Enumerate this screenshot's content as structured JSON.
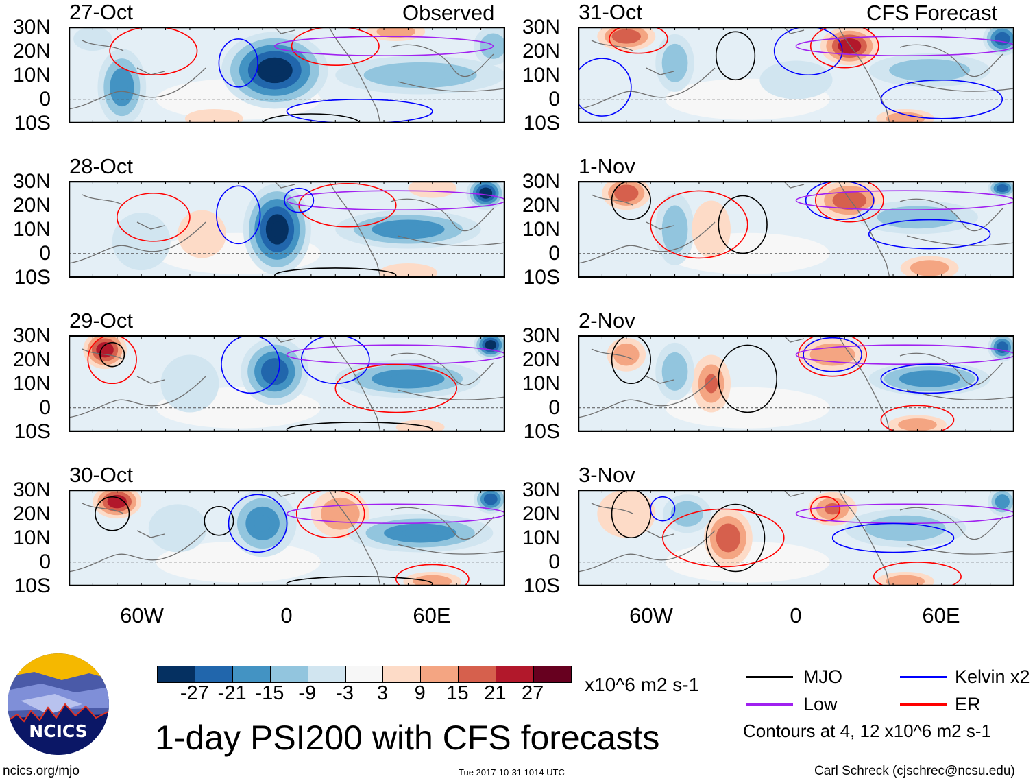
{
  "header": {
    "left_label": "Observed",
    "right_label": "CFS Forecast"
  },
  "lat_labels": [
    "30N",
    "20N",
    "10N",
    "0",
    "10S"
  ],
  "lon_labels": [
    "60W",
    "0",
    "60E"
  ],
  "colors": {
    "levels": [
      "#053061",
      "#2166ac",
      "#4393c3",
      "#92c5de",
      "#d1e5f0",
      "#f7f7f7",
      "#fddbc7",
      "#f4a582",
      "#d6604d",
      "#b2182b",
      "#67001f"
    ],
    "MJO": "#000000",
    "Low": "#a020f0",
    "Kelvin": "#0000ff",
    "ER": "#ff0000",
    "coast": "#707070"
  },
  "chart_data": {
    "type": "heatmap",
    "title": "1-day PSI200 with CFS forecasts",
    "units": "x10^6 m2 s-1",
    "lon_range": [
      -90,
      90
    ],
    "lat_range": [
      -10,
      30
    ],
    "colorbar_ticks": [
      "-27",
      "-21",
      "-15",
      "-9",
      "-3",
      "3",
      "9",
      "15",
      "21",
      "27"
    ],
    "colorbar_bounds": [
      -27,
      -21,
      -15,
      -9,
      -3,
      3,
      9,
      15,
      21,
      27
    ],
    "panels": [
      {
        "date": "27-Oct",
        "kind": "observed",
        "anomalies": [
          [
            -5,
            12,
            22,
            16,
            -31
          ],
          [
            -68,
            5,
            10,
            16,
            -21
          ],
          [
            55,
            10,
            35,
            8,
            -15
          ],
          [
            85,
            22,
            8,
            8,
            -12
          ],
          [
            45,
            28,
            12,
            4,
            10
          ],
          [
            -30,
            -8,
            12,
            4,
            5
          ],
          [
            -80,
            25,
            8,
            5,
            -8
          ]
        ],
        "contours": [
          [
            -20,
            15,
            8,
            10,
            "Kelvin"
          ],
          [
            -55,
            20,
            18,
            10,
            "ER"
          ],
          [
            20,
            22,
            18,
            8,
            "ER"
          ],
          [
            40,
            22,
            45,
            4,
            "Low"
          ],
          [
            10,
            -10,
            20,
            4,
            "MJO"
          ],
          [
            30,
            -5,
            30,
            5,
            "Kelvin"
          ]
        ]
      },
      {
        "date": "28-Oct",
        "kind": "observed",
        "anomalies": [
          [
            -4,
            10,
            14,
            19,
            -31
          ],
          [
            82,
            25,
            8,
            7,
            -30
          ],
          [
            50,
            10,
            30,
            8,
            -16
          ],
          [
            -35,
            8,
            10,
            10,
            5
          ],
          [
            60,
            27,
            10,
            4,
            8
          ],
          [
            50,
            -8,
            12,
            4,
            6
          ],
          [
            -60,
            5,
            12,
            12,
            -8
          ]
        ],
        "contours": [
          [
            -20,
            16,
            9,
            12,
            "Kelvin"
          ],
          [
            -55,
            15,
            15,
            10,
            "ER"
          ],
          [
            25,
            20,
            20,
            9,
            "ER"
          ],
          [
            45,
            22,
            45,
            4,
            "Low"
          ],
          [
            20,
            -9,
            25,
            3,
            "MJO"
          ],
          [
            5,
            22,
            6,
            5,
            "Kelvin"
          ]
        ]
      },
      {
        "date": "29-Oct",
        "kind": "observed",
        "anomalies": [
          [
            -75,
            24,
            9,
            8,
            25
          ],
          [
            -5,
            15,
            14,
            14,
            -26
          ],
          [
            50,
            12,
            30,
            8,
            -18
          ],
          [
            84,
            26,
            7,
            6,
            -30
          ],
          [
            -40,
            10,
            12,
            12,
            -9
          ],
          [
            55,
            -8,
            10,
            3,
            7
          ]
        ],
        "contours": [
          [
            -72,
            22,
            5,
            5,
            "MJO"
          ],
          [
            -15,
            18,
            12,
            12,
            "Kelvin"
          ],
          [
            -72,
            20,
            10,
            10,
            "ER"
          ],
          [
            20,
            20,
            14,
            10,
            "Kelvin"
          ],
          [
            45,
            22,
            45,
            4,
            "Low"
          ],
          [
            30,
            -9,
            30,
            3,
            "MJO"
          ],
          [
            45,
            8,
            25,
            10,
            "ER"
          ]
        ]
      },
      {
        "date": "30-Oct",
        "kind": "observed",
        "anomalies": [
          [
            -70,
            25,
            10,
            7,
            25
          ],
          [
            -10,
            16,
            14,
            14,
            -20
          ],
          [
            22,
            20,
            12,
            10,
            12
          ],
          [
            55,
            12,
            30,
            8,
            -18
          ],
          [
            84,
            26,
            7,
            6,
            -27
          ],
          [
            60,
            -8,
            12,
            4,
            10
          ],
          [
            -45,
            14,
            12,
            10,
            -9
          ]
        ],
        "contours": [
          [
            -72,
            20,
            7,
            7,
            "MJO"
          ],
          [
            -28,
            17,
            6,
            6,
            "MJO"
          ],
          [
            -12,
            16,
            12,
            12,
            "Kelvin"
          ],
          [
            18,
            20,
            14,
            10,
            "ER"
          ],
          [
            45,
            20,
            45,
            4,
            "Low"
          ],
          [
            30,
            -9,
            30,
            3,
            "MJO"
          ],
          [
            60,
            -7,
            15,
            6,
            "ER"
          ]
        ]
      },
      {
        "date": "31-Oct",
        "kind": "forecast",
        "anomalies": [
          [
            -70,
            26,
            12,
            6,
            18
          ],
          [
            22,
            22,
            12,
            8,
            22
          ],
          [
            -50,
            15,
            8,
            12,
            -15
          ],
          [
            85,
            25,
            8,
            7,
            -25
          ],
          [
            45,
            -8,
            12,
            4,
            12
          ],
          [
            55,
            12,
            25,
            7,
            -10
          ],
          [
            0,
            8,
            15,
            8,
            -5
          ]
        ],
        "contours": [
          [
            -65,
            25,
            12,
            6,
            "ER"
          ],
          [
            -25,
            18,
            8,
            10,
            "MJO"
          ],
          [
            5,
            20,
            14,
            10,
            "Kelvin"
          ],
          [
            20,
            22,
            14,
            9,
            "ER"
          ],
          [
            45,
            22,
            45,
            4,
            "Low"
          ],
          [
            60,
            0,
            25,
            8,
            "Kelvin"
          ],
          [
            -80,
            5,
            12,
            12,
            "Kelvin"
          ]
        ]
      },
      {
        "date": "1-Nov",
        "kind": "forecast",
        "anomalies": [
          [
            -70,
            25,
            10,
            7,
            20
          ],
          [
            22,
            22,
            14,
            8,
            18
          ],
          [
            -50,
            10,
            8,
            15,
            -12
          ],
          [
            -35,
            10,
            8,
            12,
            8
          ],
          [
            50,
            15,
            25,
            7,
            -15
          ],
          [
            55,
            -6,
            12,
            5,
            12
          ],
          [
            85,
            27,
            6,
            4,
            -25
          ]
        ],
        "contours": [
          [
            -68,
            22,
            8,
            8,
            "MJO"
          ],
          [
            -22,
            12,
            10,
            12,
            "MJO"
          ],
          [
            18,
            22,
            14,
            8,
            "Kelvin"
          ],
          [
            22,
            22,
            14,
            9,
            "ER"
          ],
          [
            45,
            22,
            45,
            4,
            "Low"
          ],
          [
            55,
            8,
            25,
            6,
            "Kelvin"
          ],
          [
            -40,
            12,
            20,
            14,
            "ER"
          ]
        ]
      },
      {
        "date": "2-Nov",
        "kind": "forecast",
        "anomalies": [
          [
            -70,
            22,
            8,
            7,
            12
          ],
          [
            -35,
            10,
            8,
            12,
            15
          ],
          [
            15,
            22,
            14,
            7,
            12
          ],
          [
            -50,
            15,
            8,
            12,
            -12
          ],
          [
            55,
            12,
            25,
            7,
            -18
          ],
          [
            85,
            25,
            6,
            6,
            -25
          ],
          [
            50,
            -7,
            12,
            4,
            12
          ]
        ],
        "contours": [
          [
            -68,
            20,
            8,
            10,
            "MJO"
          ],
          [
            -20,
            12,
            12,
            14,
            "MJO"
          ],
          [
            15,
            22,
            12,
            7,
            "Kelvin"
          ],
          [
            15,
            22,
            14,
            9,
            "ER"
          ],
          [
            45,
            22,
            45,
            4,
            "Low"
          ],
          [
            55,
            12,
            20,
            6,
            "Kelvin"
          ],
          [
            50,
            -5,
            15,
            6,
            "ER"
          ]
        ]
      },
      {
        "date": "3-Nov",
        "kind": "forecast",
        "anomalies": [
          [
            -28,
            10,
            10,
            12,
            18
          ],
          [
            15,
            22,
            10,
            7,
            15
          ],
          [
            -45,
            20,
            10,
            8,
            -10
          ],
          [
            45,
            14,
            25,
            8,
            -12
          ],
          [
            85,
            25,
            6,
            6,
            -20
          ],
          [
            45,
            -8,
            12,
            4,
            10
          ],
          [
            -70,
            20,
            12,
            10,
            6
          ]
        ],
        "contours": [
          [
            -68,
            20,
            8,
            10,
            "MJO"
          ],
          [
            -25,
            10,
            12,
            14,
            "MJO"
          ],
          [
            12,
            22,
            6,
            5,
            "ER"
          ],
          [
            -30,
            10,
            25,
            12,
            "ER"
          ],
          [
            45,
            20,
            45,
            4,
            "Low"
          ],
          [
            40,
            10,
            25,
            6,
            "Kelvin"
          ],
          [
            -55,
            22,
            5,
            5,
            "Kelvin"
          ],
          [
            50,
            -6,
            18,
            6,
            "ER"
          ]
        ]
      }
    ]
  },
  "colorbar": {
    "units": "x10^6 m2 s-1"
  },
  "legend": {
    "items": [
      {
        "key": "MJO",
        "label": "MJO"
      },
      {
        "key": "Kelvin",
        "label": "Kelvin x2"
      },
      {
        "key": "Low",
        "label": "Low"
      },
      {
        "key": "ER",
        "label": "ER"
      }
    ],
    "note": "Contours at 4, 12 x10^6 m2 s-1"
  },
  "footer": {
    "title": "1-day PSI200 with CFS forecasts",
    "url": "ncics.org/mjo",
    "timestamp": "Tue 2017-10-31 1014 UTC",
    "credit": "Carl Schreck (cjschrec@ncsu.edu)"
  },
  "logo": {
    "text": "NCICS"
  }
}
